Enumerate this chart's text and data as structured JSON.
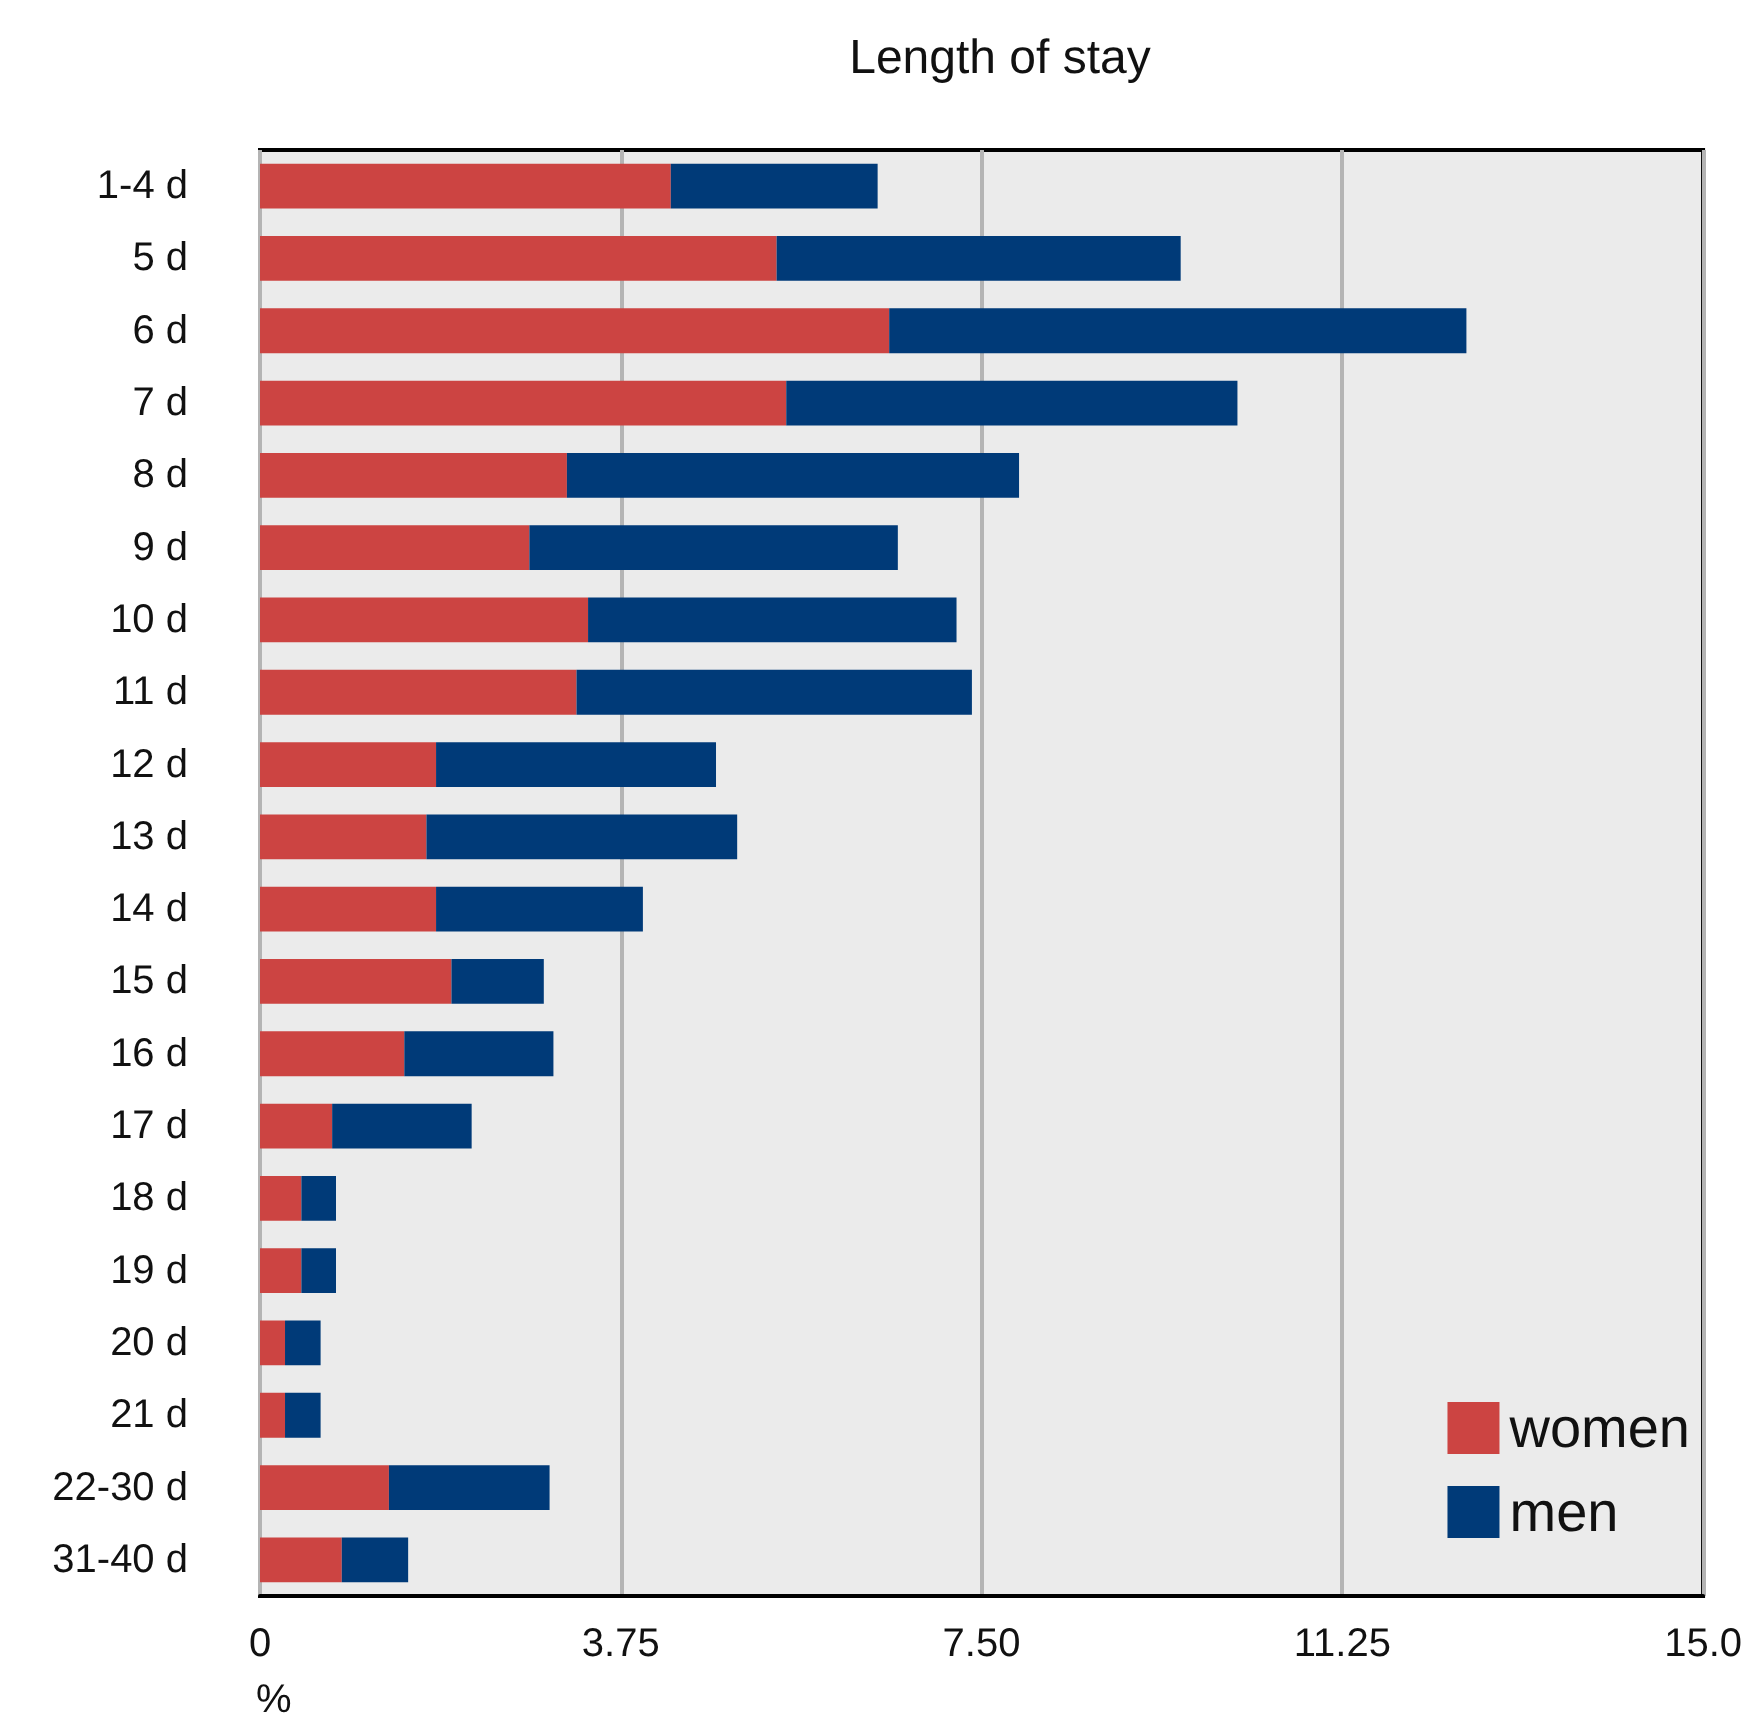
{
  "chart_data": {
    "type": "bar",
    "title": "Length of stay",
    "xlabel": "%",
    "orientation": "horizontal",
    "stacked": true,
    "categories": [
      "1-4 d",
      "5 d",
      "6 d",
      "7 d",
      "8 d",
      "9 d",
      "10 d",
      "11 d",
      "12 d",
      "13 d",
      "14 d",
      "15 d",
      "16 d",
      "17 d",
      "18 d",
      "19 d",
      "20 d",
      "21 d",
      "22-30 d",
      "31-40 d"
    ],
    "series": [
      {
        "name": "women",
        "color": "#cc4442",
        "values": [
          4.27,
          5.37,
          6.54,
          5.47,
          3.19,
          2.8,
          3.41,
          3.29,
          1.83,
          1.73,
          1.83,
          1.99,
          1.5,
          0.75,
          0.43,
          0.43,
          0.26,
          0.26,
          1.34,
          0.85
        ]
      },
      {
        "name": "men",
        "color": "#003a78",
        "values": [
          2.15,
          4.2,
          6.0,
          4.69,
          4.7,
          3.83,
          3.83,
          4.11,
          2.91,
          3.23,
          2.15,
          0.96,
          1.55,
          1.45,
          0.36,
          0.36,
          0.37,
          0.37,
          1.67,
          0.69
        ]
      }
    ],
    "xlim": [
      0,
      15
    ],
    "xticks": [
      0,
      3.75,
      {
        "value": 7.5,
        "label": "7.50"
      },
      11.25,
      {
        "value": 15,
        "label": "15.0"
      }
    ],
    "grid": "x",
    "legend": "bottom right"
  }
}
